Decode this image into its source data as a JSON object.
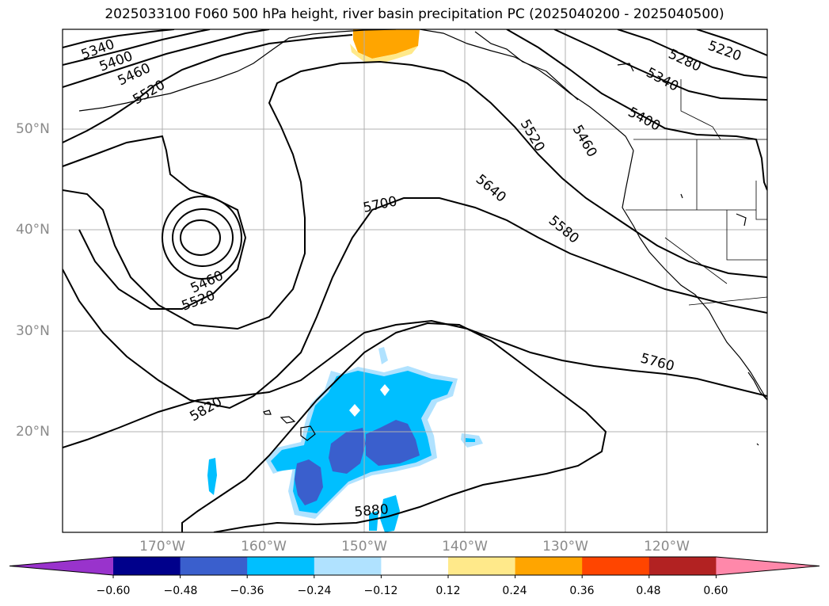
{
  "title": "2025033100 F060 500 hPa height, river basin precipitation PC (2025040200 - 2025040500)",
  "lat_labels": [
    "50°N",
    "40°N",
    "30°N",
    "20°N"
  ],
  "lon_labels": [
    "170°W",
    "160°W",
    "150°W",
    "140°W",
    "130°W",
    "120°W"
  ],
  "contour_labels": [
    "5340",
    "5400",
    "5460",
    "5520",
    "5220",
    "5280",
    "5340",
    "5400",
    "5460",
    "5520",
    "5640",
    "5580",
    "5700",
    "5460",
    "5520",
    "5760",
    "5820",
    "5880"
  ],
  "colorbar": {
    "ticks": [
      "−0.60",
      "−0.48",
      "−0.36",
      "−0.24",
      "−0.12",
      "0.12",
      "0.24",
      "0.36",
      "0.48",
      "0.60"
    ],
    "colors": [
      "#9933cc",
      "#00008b",
      "#3a5fcd",
      "#00bfff",
      "#b0e2ff",
      "#ffffff",
      "#ffe98a",
      "#ffa500",
      "#ff4500",
      "#b22222",
      "#ff88aa"
    ]
  },
  "colors": {
    "positive_anomaly": "#ffa500",
    "negative_light": "#b0e2ff",
    "negative_mid": "#00bfff",
    "negative_strong": "#3a5fcd"
  }
}
